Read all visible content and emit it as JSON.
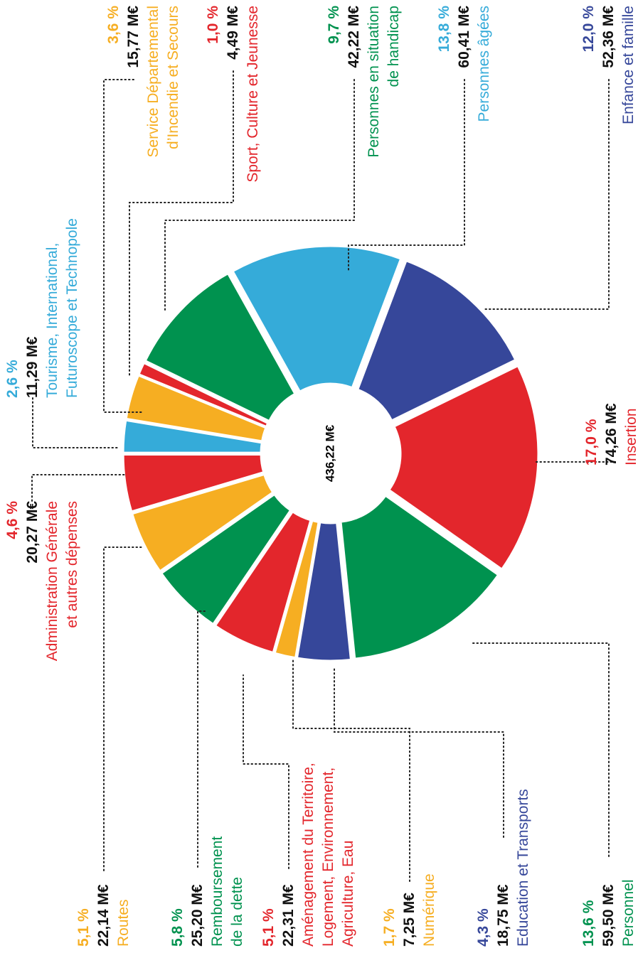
{
  "chart_data": {
    "type": "pie",
    "center_label": "436,22 M€",
    "categories": [
      "Administration Générale\net autres dépenses",
      "Routes",
      "Remboursement\nde la dette",
      "Aménagement du Territoire,\nLogement, Environnement,\nAgriculture, Eau",
      "Numérique",
      "Education et Transports",
      "Personnel",
      "Insertion",
      "Enfance et famille",
      "Personnes âgées",
      "Personnes en situation\nde handicap",
      "Sport, Culture et Jeunesse",
      "Service Départemental\nd’Incendie et Secours",
      "Tourisme, International,\nFuturoscope et Technopole"
    ],
    "values": [
      4.6,
      5.1,
      5.8,
      5.1,
      1.7,
      4.3,
      13.6,
      17.0,
      12.0,
      13.8,
      9.7,
      1.0,
      3.6,
      2.6
    ],
    "value_labels": [
      "4,6 %",
      "5,1 %",
      "5,8 %",
      "5,1 %",
      "1,7 %",
      "4,3 %",
      "13,6 %",
      "17,0 %",
      "12,0 %",
      "13,8 %",
      "9,7 %",
      "1,0 %",
      "3,6 %",
      "2,6 %"
    ],
    "amount_labels": [
      "20,27 M€",
      "22,14 M€",
      "25,20 M€",
      "22,31 M€",
      "7,25 M€",
      "18,75 M€",
      "59,50 M€",
      "74,26 M€",
      "52,36 M€",
      "60,41 M€",
      "42,22 M€",
      "4,49 M€",
      "15,77 M€",
      "11,29 M€"
    ],
    "colors": [
      "#e3262c",
      "#f6ae22",
      "#00924f",
      "#e3262c",
      "#f6ae22",
      "#36479a",
      "#00924f",
      "#e3262c",
      "#36479a",
      "#35abd9",
      "#00924f",
      "#e3262c",
      "#f6ae22",
      "#35abd9"
    ]
  }
}
